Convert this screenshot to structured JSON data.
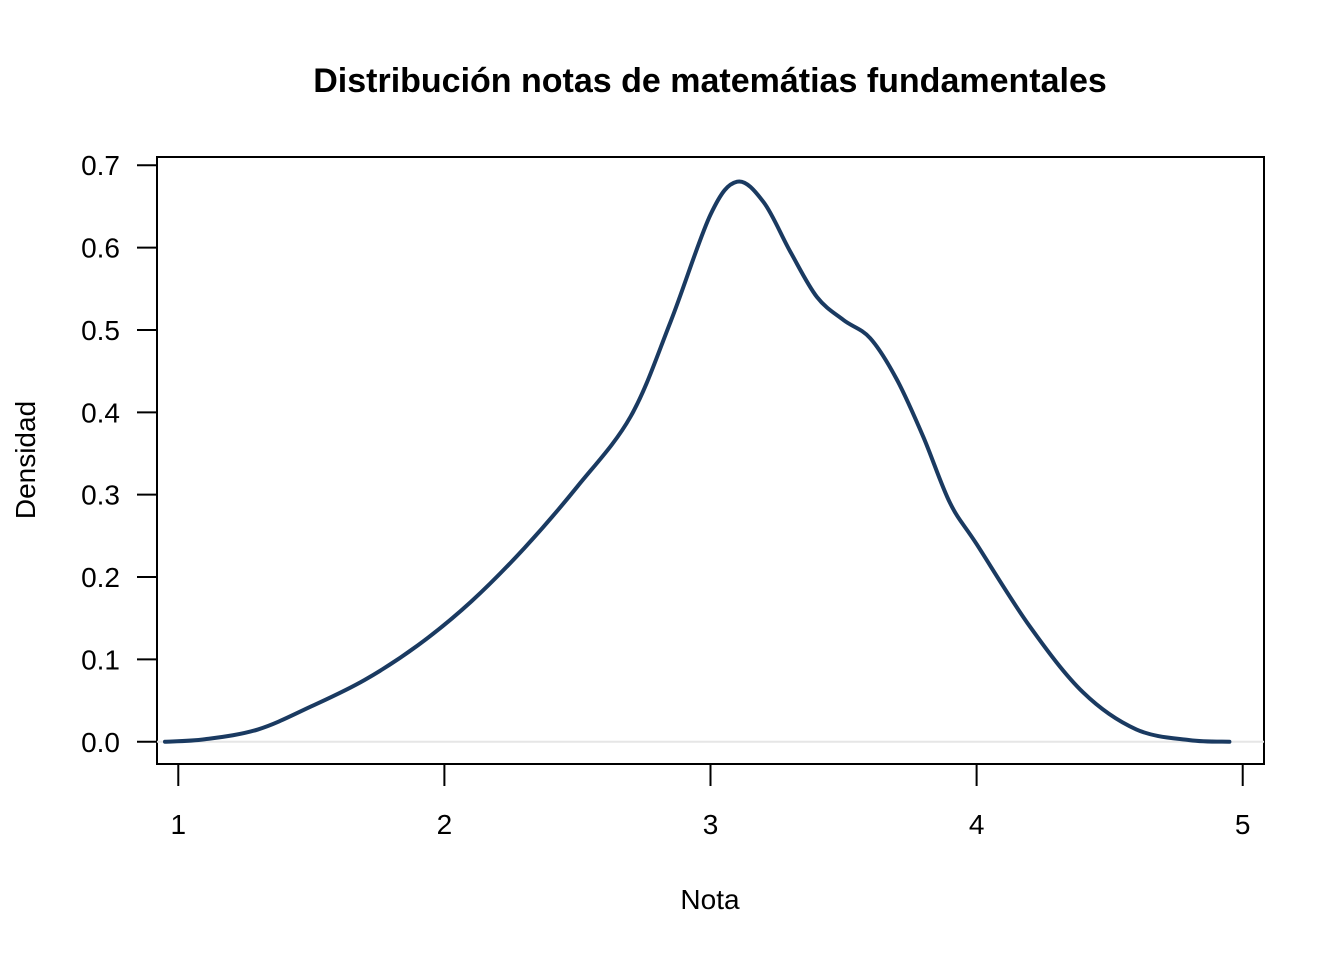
{
  "chart_data": {
    "type": "line",
    "title": "Distribución notas de matemátias fundamentales",
    "xlabel": "Nota",
    "ylabel": "Densidad",
    "xlim": [
      0.92,
      5.08
    ],
    "ylim": [
      -0.027,
      0.71
    ],
    "x_ticks": [
      1,
      2,
      3,
      4,
      5
    ],
    "x_tick_labels": [
      "1",
      "2",
      "3",
      "4",
      "5"
    ],
    "y_ticks": [
      0.0,
      0.1,
      0.2,
      0.3,
      0.4,
      0.5,
      0.6,
      0.7
    ],
    "y_tick_labels": [
      "0.0",
      "0.1",
      "0.2",
      "0.3",
      "0.4",
      "0.5",
      "0.6",
      "0.7"
    ],
    "grid": false,
    "legend": "none",
    "line_color": "#1a3a61",
    "baseline_color": "#e6e6e6",
    "series": [
      {
        "x": [
          0.95,
          1.1,
          1.3,
          1.5,
          1.7,
          1.9,
          2.1,
          2.3,
          2.5,
          2.7,
          2.85,
          3.0,
          3.1,
          3.2,
          3.3,
          3.4,
          3.5,
          3.6,
          3.7,
          3.8,
          3.9,
          4.0,
          4.2,
          4.4,
          4.6,
          4.8,
          4.95
        ],
        "y": [
          0.0,
          0.003,
          0.015,
          0.043,
          0.075,
          0.117,
          0.17,
          0.235,
          0.31,
          0.395,
          0.51,
          0.64,
          0.68,
          0.655,
          0.595,
          0.54,
          0.512,
          0.49,
          0.44,
          0.37,
          0.29,
          0.24,
          0.14,
          0.06,
          0.015,
          0.002,
          0.0
        ]
      }
    ]
  }
}
